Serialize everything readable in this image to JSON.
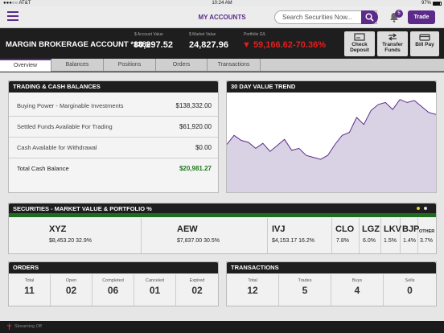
{
  "status": {
    "carrier": "●●●○○ AT&T",
    "time": "10:24 AM",
    "battery": "97%"
  },
  "nav": {
    "title": "MY ACCOUNTS",
    "search_placeholder": "Search Securities Now...",
    "notifications": "5",
    "trade": "Trade"
  },
  "account": {
    "name": "MARGIN BROKERAGE ACCOUNT *1386",
    "account_value_label": "$ Account Value",
    "account_value": "80,297.52",
    "market_value_label": "$ Market Value",
    "market_value": "24,827.96",
    "gl_label": "Portfolio G/L",
    "gl_value": "▼ 59,166.62",
    "gl_pct": "-70.36%",
    "actions": [
      {
        "label1": "Check",
        "label2": "Deposit",
        "icon": "check-deposit-icon"
      },
      {
        "label1": "Transfer",
        "label2": "Funds",
        "icon": "transfer-icon"
      },
      {
        "label1": "Bill Pay",
        "label2": "",
        "icon": "bill-pay-icon"
      }
    ]
  },
  "tabs": [
    "Overview",
    "Balances",
    "Positions",
    "Orders",
    "Transactions"
  ],
  "trading": {
    "title": "TRADING & CASH BALANCES",
    "rows": [
      {
        "label": "Buying Power - Marginable Investments",
        "value": "$138,332.00"
      },
      {
        "label": "Settled Funds Available For Trading",
        "value": "$61,920.00"
      },
      {
        "label": "Cash Available for Withdrawal",
        "value": "$0.00"
      },
      {
        "label": "Total Cash Balance",
        "value": "$20,981.27"
      }
    ]
  },
  "trend": {
    "title": "30 DAY VALUE TREND"
  },
  "chart_data": {
    "type": "area",
    "title": "30 DAY VALUE TREND",
    "values": [
      48,
      57,
      52,
      50,
      44,
      49,
      41,
      47,
      53,
      42,
      44,
      37,
      35,
      33,
      37,
      48,
      57,
      60,
      75,
      68,
      82,
      88,
      90,
      83,
      93,
      90,
      92,
      86,
      80,
      78
    ],
    "ylim": [
      0,
      100
    ],
    "grid": false,
    "fill_color": "#d9d2e4",
    "line_color": "#5c2b8a"
  },
  "securities": {
    "title": "SECURITIES - MARKET VALUE & PORTFOLIO %",
    "items": [
      {
        "symbol": "XYZ",
        "amount": "$8,453.20",
        "pct": "32.9%"
      },
      {
        "symbol": "AEW",
        "amount": "$7,837.00",
        "pct": "30.5%"
      },
      {
        "symbol": "IVJ",
        "amount": "$4,153.17",
        "pct": "16.2%"
      },
      {
        "symbol": "CLO",
        "amount": "",
        "pct": "7.8%"
      },
      {
        "symbol": "LGZ",
        "amount": "",
        "pct": "6.0%"
      },
      {
        "symbol": "LKV",
        "amount": "",
        "pct": "1.5%"
      },
      {
        "symbol": "BJP",
        "amount": "",
        "pct": "1.4%"
      },
      {
        "symbol": "OTHER",
        "amount": "",
        "pct": "3.7%"
      }
    ]
  },
  "orders": {
    "title": "ORDERS",
    "items": [
      {
        "label": "Total",
        "value": "11"
      },
      {
        "label": "Open",
        "value": "02"
      },
      {
        "label": "Completed",
        "value": "06"
      },
      {
        "label": "Canceled",
        "value": "01"
      },
      {
        "label": "Expired",
        "value": "02"
      }
    ]
  },
  "transactions": {
    "title": "TRANSACTIONS",
    "items": [
      {
        "label": "Total",
        "value": "12"
      },
      {
        "label": "Trades",
        "value": "5"
      },
      {
        "label": "Buys",
        "value": "4"
      },
      {
        "label": "Sells",
        "value": "0"
      }
    ]
  },
  "footer": {
    "streaming": "Streaming Off"
  }
}
